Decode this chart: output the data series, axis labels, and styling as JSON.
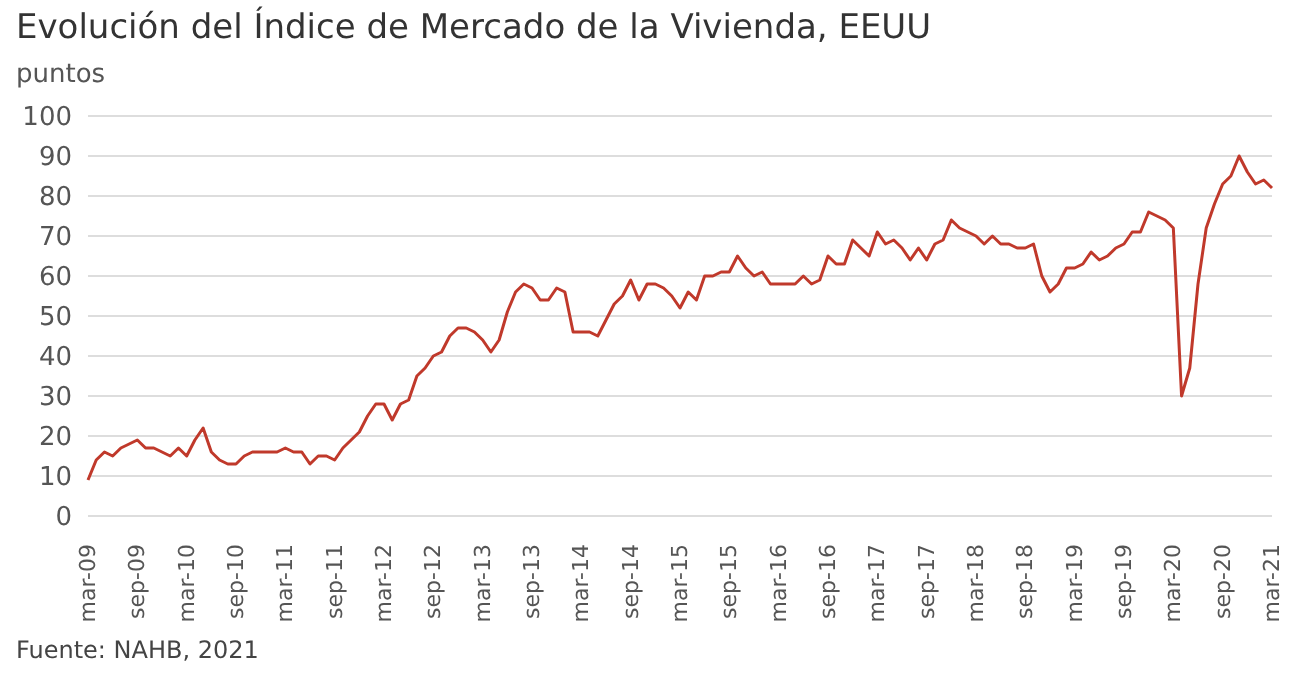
{
  "chart_data": {
    "type": "line",
    "title": "Evolución del Índice de Mercado de la Vivienda, EEUU",
    "subtitle": "puntos",
    "annotations": [
      "Fuente: NAHB, 2021"
    ],
    "categories": [
      "mar-09",
      null,
      null,
      null,
      null,
      null,
      "sep-09",
      null,
      null,
      null,
      null,
      null,
      "mar-10",
      null,
      null,
      null,
      null,
      null,
      "sep-10",
      null,
      null,
      null,
      null,
      null,
      "mar-11",
      null,
      null,
      null,
      null,
      null,
      "sep-11",
      null,
      null,
      null,
      null,
      null,
      "mar-12",
      null,
      null,
      null,
      null,
      null,
      "sep-12",
      null,
      null,
      null,
      null,
      null,
      "mar-13",
      null,
      null,
      null,
      null,
      null,
      "sep-13",
      null,
      null,
      null,
      null,
      null,
      "mar-14",
      null,
      null,
      null,
      null,
      null,
      "sep-14",
      null,
      null,
      null,
      null,
      null,
      "mar-15",
      null,
      null,
      null,
      null,
      null,
      "sep-15",
      null,
      null,
      null,
      null,
      null,
      "mar-16",
      null,
      null,
      null,
      null,
      null,
      "sep-16",
      null,
      null,
      null,
      null,
      null,
      "mar-17",
      null,
      null,
      null,
      null,
      null,
      "sep-17",
      null,
      null,
      null,
      null,
      null,
      "mar-18",
      null,
      null,
      null,
      null,
      null,
      "sep-18",
      null,
      null,
      null,
      null,
      null,
      "mar-19",
      null,
      null,
      null,
      null,
      null,
      "sep-19",
      null,
      null,
      null,
      null,
      null,
      "mar-20",
      null,
      null,
      null,
      null,
      null,
      "sep-20",
      null,
      null,
      null,
      null,
      null,
      "mar-21"
    ],
    "series": [
      {
        "color": "#c0392b",
        "values": [
          9,
          14,
          16,
          15,
          17,
          18,
          19,
          17,
          17,
          16,
          15,
          17,
          15,
          19,
          22,
          16,
          14,
          13,
          13,
          15,
          16,
          16,
          16,
          16,
          17,
          16,
          16,
          13,
          15,
          15,
          14,
          17,
          19,
          21,
          25,
          28,
          28,
          24,
          28,
          29,
          35,
          37,
          40,
          41,
          45,
          47,
          47,
          46,
          44,
          41,
          44,
          51,
          56,
          58,
          57,
          54,
          54,
          57,
          56,
          46,
          46,
          46,
          45,
          49,
          53,
          55,
          59,
          54,
          58,
          58,
          57,
          55,
          52,
          56,
          54,
          60,
          60,
          61,
          61,
          65,
          62,
          60,
          61,
          58,
          58,
          58,
          58,
          60,
          58,
          59,
          65,
          63,
          63,
          69,
          67,
          65,
          71,
          68,
          69,
          67,
          64,
          67,
          64,
          68,
          69,
          74,
          72,
          71,
          70,
          68,
          70,
          68,
          68,
          67,
          67,
          68,
          60,
          56,
          58,
          62,
          62,
          63,
          66,
          64,
          65,
          67,
          68,
          71,
          71,
          76,
          75,
          74,
          72,
          30,
          37,
          58,
          72,
          78,
          83,
          85,
          90,
          86,
          83,
          84,
          82
        ]
      }
    ],
    "ylim": [
      0,
      100
    ],
    "yticks": [
      0,
      10,
      20,
      30,
      40,
      50,
      60,
      70,
      80,
      90,
      100
    ],
    "grid": "y",
    "marker": "none",
    "line_style": "solid"
  }
}
